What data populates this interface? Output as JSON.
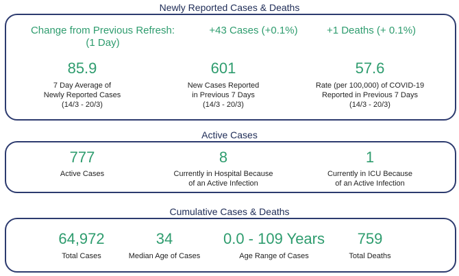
{
  "newly_reported": {
    "title": "Newly Reported Cases & Deaths",
    "change_label_line1": "Change from Previous Refresh:",
    "change_label_line2": "(1 Day)",
    "cases_change": "+43 Cases (+0.1%)",
    "deaths_change": "+1 Deaths (+ 0.1%)",
    "metrics": [
      {
        "value": "85.9",
        "l1": "7 Day Average of",
        "l2": "Newly Reported Cases",
        "l3": "(14/3 - 20/3)"
      },
      {
        "value": "601",
        "l1": "New Cases Reported",
        "l2": "in Previous 7 Days",
        "l3": "(14/3 - 20/3)"
      },
      {
        "value": "57.6",
        "l1": "Rate (per 100,000) of COVID-19",
        "l2": "Reported in Previous 7 Days",
        "l3": "(14/3 - 20/3)"
      }
    ]
  },
  "active": {
    "title": "Active Cases",
    "metrics": [
      {
        "value": "777",
        "l1": "Active Cases",
        "l2": ""
      },
      {
        "value": "8",
        "l1": "Currently in Hospital Because",
        "l2": "of an Active Infection"
      },
      {
        "value": "1",
        "l1": "Currently in ICU Because",
        "l2": "of an Active Infection"
      }
    ]
  },
  "cumulative": {
    "title": "Cumulative Cases & Deaths",
    "metrics": [
      {
        "value": "64,972",
        "label": "Total Cases"
      },
      {
        "value": "34",
        "label": "Median Age of Cases"
      },
      {
        "value": "0.0 - 109 Years",
        "label": "Age Range of Cases"
      },
      {
        "value": "759",
        "label": "Total Deaths"
      }
    ]
  }
}
